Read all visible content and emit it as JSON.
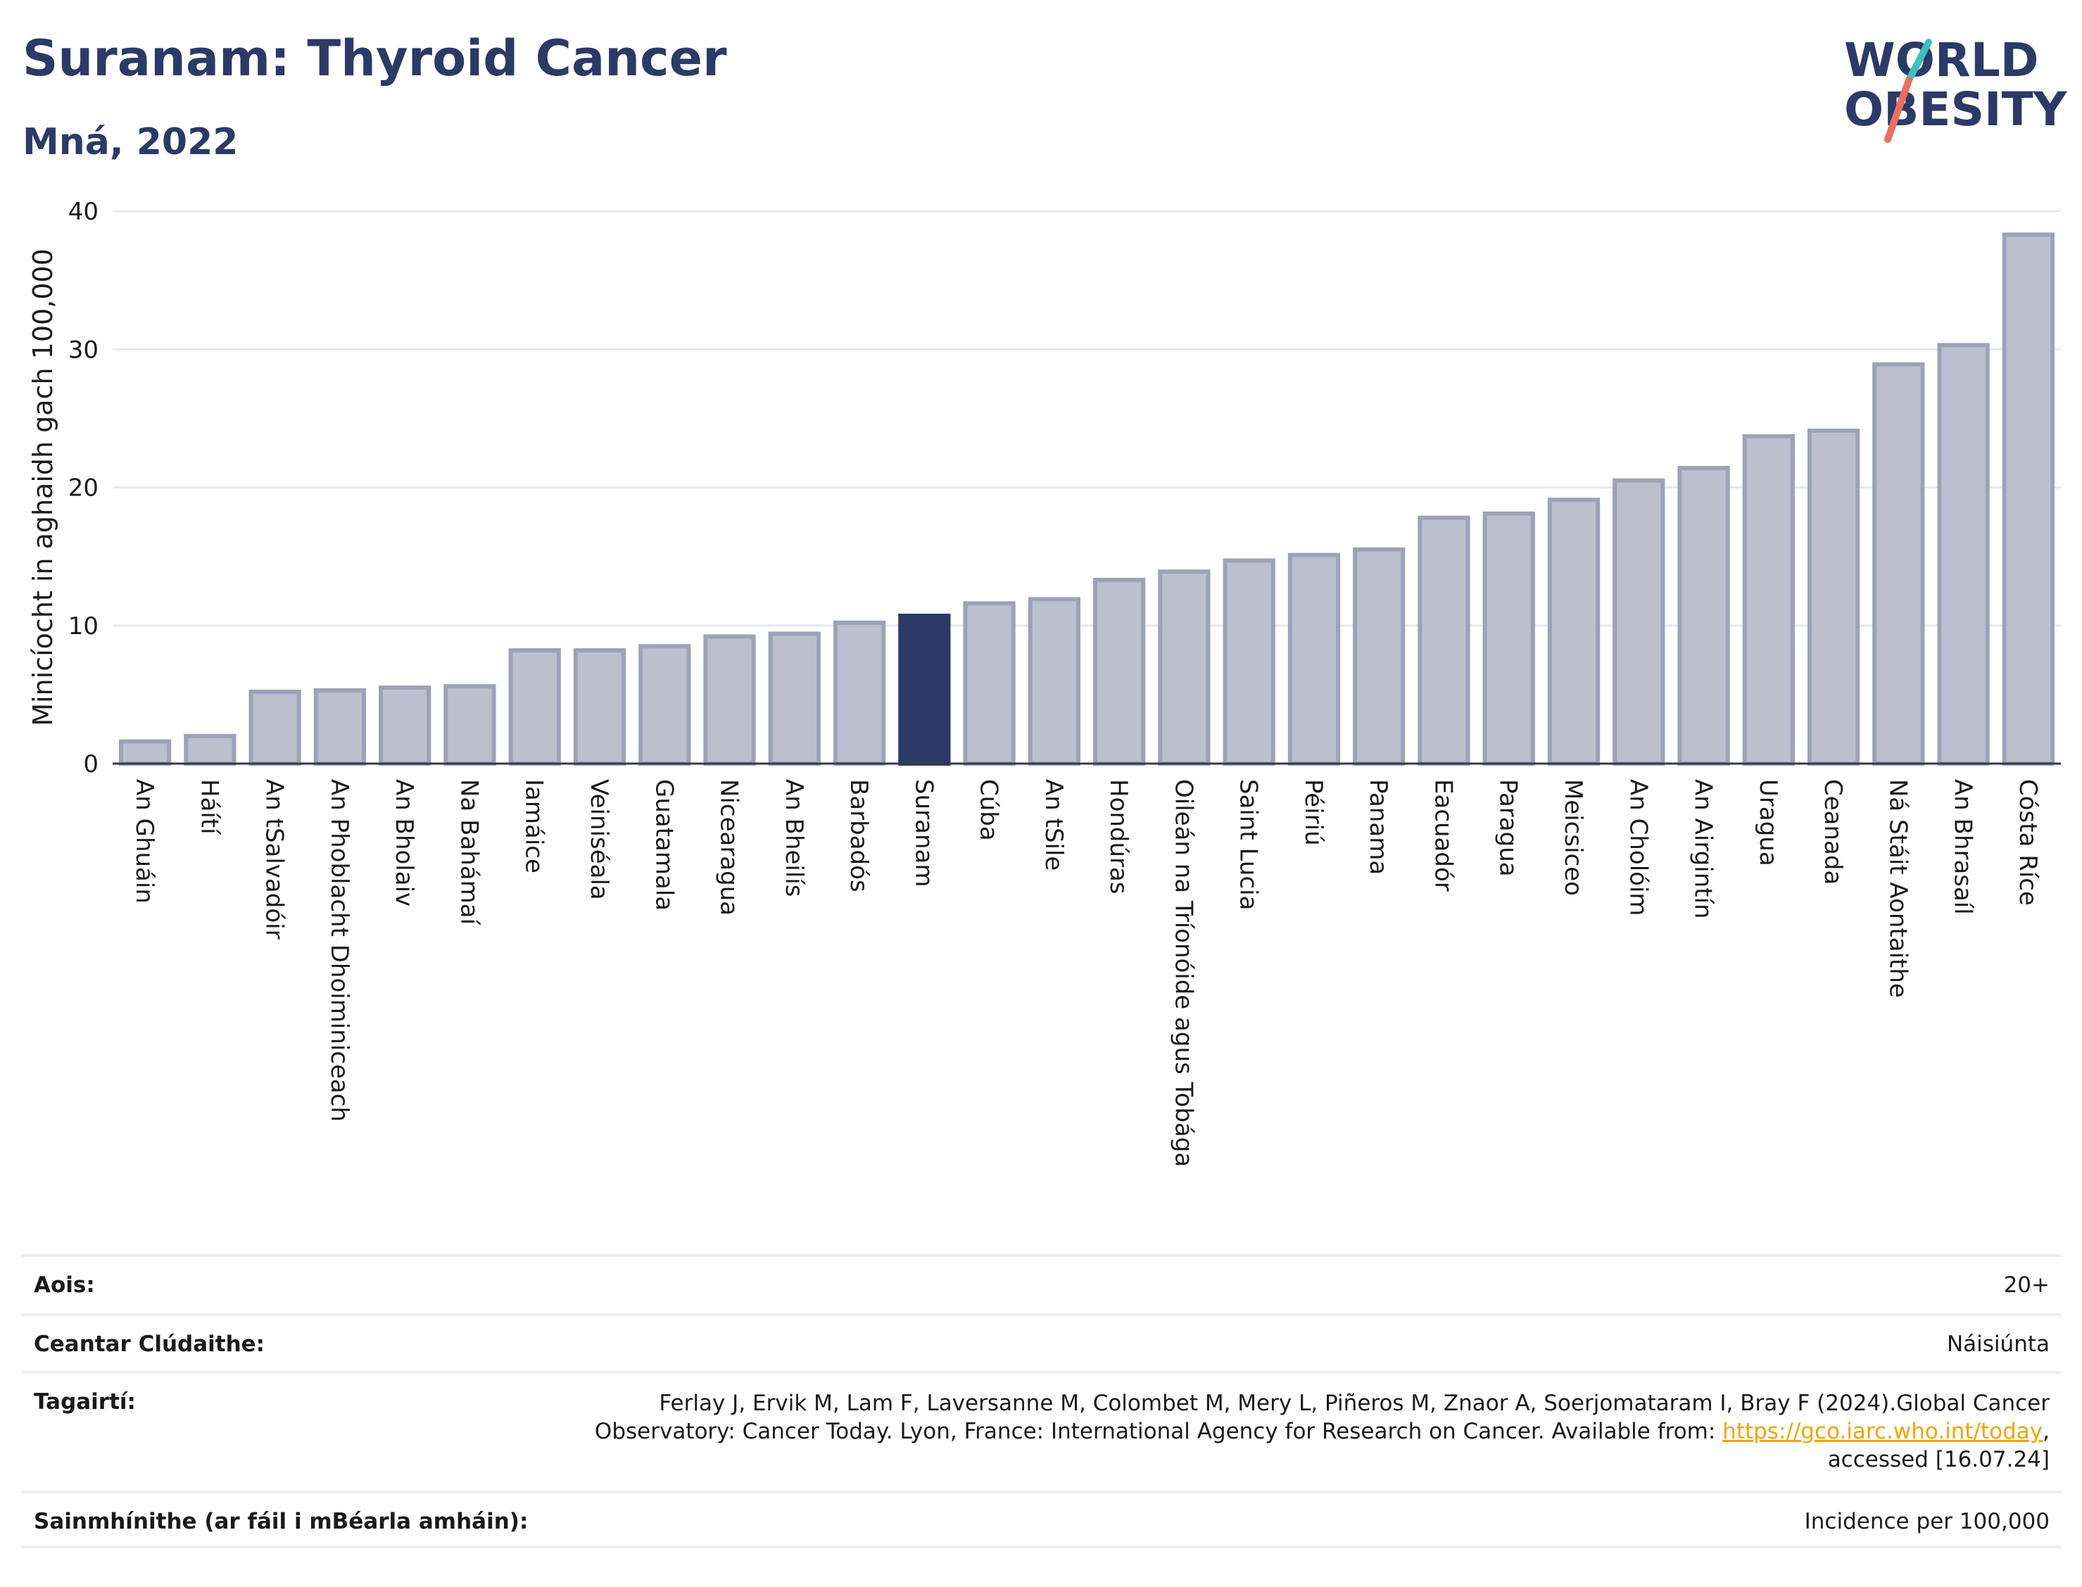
{
  "title": "Suranam: Thyroid Cancer",
  "subtitle": "Mná, 2022",
  "logo": {
    "line1": "WORLD",
    "line2": "OBESITY",
    "text_color": "#2b3a67",
    "slash_colors": [
      "#e8705e",
      "#3ec1bd"
    ]
  },
  "colors": {
    "bar": "#bcc0ce",
    "bar_stroke": "#9ca2b8",
    "highlight": "#2b3a67",
    "axis_text": "#1a1a1a",
    "grid": "#e6e8ee"
  },
  "chart_data": {
    "type": "bar",
    "ylabel": "Minicíocht in aghaidh gach 100,000",
    "ylim": [
      0,
      40
    ],
    "yticks": [
      0,
      10,
      20,
      30,
      40
    ],
    "grid": true,
    "highlight": "Suranam",
    "categories": [
      "An Ghuáin",
      "Háítí",
      "An tSalvadóir",
      "An Phoblacht Dhoiminiceach",
      "An Bholaiv",
      "Na Bahámaí",
      "Iamáice",
      "Veiniséala",
      "Guatamala",
      "Nicearagua",
      "An Bheilís",
      "Barbadós",
      "Suranam",
      "Cúba",
      "An tSile",
      "Hondúras",
      "Oileán na Tríonóide agus Tobága",
      "Saint Lucia",
      "Péiriú",
      "Panama",
      "Eacuadór",
      "Paragua",
      "Meicsiceo",
      "An Cholóim",
      "An Airgintín",
      "Uragua",
      "Ceanada",
      "Ná Stáit Aontaithe",
      "An Bhrasaíl",
      "Cósta Ríce"
    ],
    "values": [
      1.6,
      2.0,
      5.2,
      5.3,
      5.5,
      5.6,
      8.2,
      8.2,
      8.5,
      9.2,
      9.4,
      10.2,
      10.7,
      11.6,
      11.9,
      13.3,
      13.9,
      14.7,
      15.1,
      15.5,
      17.8,
      18.1,
      19.1,
      20.5,
      21.4,
      23.7,
      24.1,
      28.9,
      30.3,
      38.3
    ]
  },
  "info": {
    "age_label": "Aois:",
    "age_value": "20+",
    "coverage_label": "Ceantar Clúdaithe:",
    "coverage_value": "Náisiúnta",
    "refs_label": "Tagairtí:",
    "refs_line1": "Ferlay J, Ervik M, Lam F, Laversanne M, Colombet M, Mery L, Piñeros M, Znaor A, Soerjomataram I, Bray F (2024).Global Cancer",
    "refs_line2_pre": "Observatory: Cancer Today. Lyon, France: International Agency for Research on Cancer. Available from: ",
    "refs_link": "https://gco.iarc.who.int/today",
    "refs_line2_post": ",",
    "refs_line3": "accessed [16.07.24]",
    "defs_label": "Sainmhínithe (ar fáil i mBéarla amháin):",
    "defs_value": "Incidence per 100,000"
  }
}
